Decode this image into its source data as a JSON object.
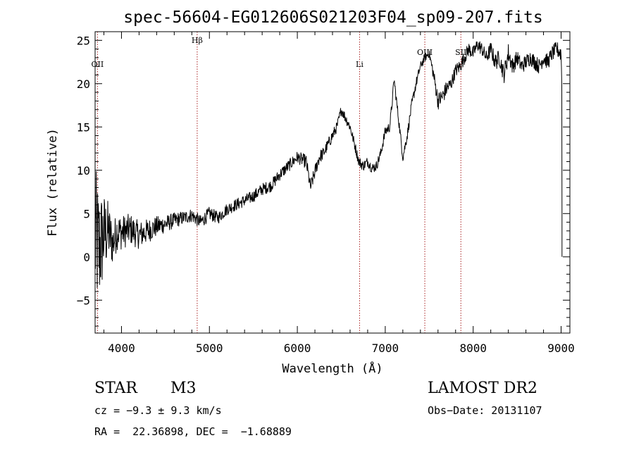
{
  "chart_data": {
    "type": "line",
    "title": "spec-56604-EG012606S021203F04_sp09-207.fits",
    "xlabel": "Wavelength (Å)",
    "ylabel": "Flux (relative)",
    "xlim": [
      3700,
      9100
    ],
    "ylim": [
      -8.8,
      26
    ],
    "x_ticks": [
      4000,
      5000,
      6000,
      7000,
      8000,
      9000
    ],
    "x_tick_labels": [
      "4000",
      "5000",
      "6000",
      "7000",
      "8000",
      "9000"
    ],
    "y_ticks": [
      -5,
      0,
      5,
      10,
      15,
      20,
      25
    ],
    "y_tick_labels": [
      "−5",
      "0",
      "5",
      "10",
      "15",
      "20",
      "25"
    ],
    "grid": false,
    "line_color": "#000000",
    "marker_color": "#aa2222",
    "lines": [
      {
        "label": "OII",
        "wavelength": 3727
      },
      {
        "label": "Hβ",
        "wavelength": 4861
      },
      {
        "label": "Li",
        "wavelength": 6708
      },
      {
        "label": "OIII",
        "wavelength": 7450
      },
      {
        "label": "SII",
        "wavelength": 7860
      }
    ],
    "series": [
      {
        "x": [
          3700,
          3750,
          3800,
          3850,
          3900,
          3950,
          4000,
          4100,
          4200,
          4300,
          4400,
          4500,
          4600,
          4700,
          4800,
          4900,
          5000,
          5100,
          5200,
          5300,
          5400,
          5500,
          5600,
          5700,
          5800,
          5900,
          6000,
          6100,
          6150,
          6200,
          6250,
          6300,
          6350,
          6400,
          6450,
          6500,
          6550,
          6600,
          6650,
          6700,
          6750,
          6800,
          6850,
          6900,
          6950,
          7000,
          7050,
          7080,
          7100,
          7150,
          7200,
          7250,
          7300,
          7350,
          7400,
          7450,
          7500,
          7550,
          7600,
          7650,
          7700,
          7750,
          7800,
          7850,
          7900,
          7950,
          8000,
          8050,
          8100,
          8150,
          8200,
          8250,
          8300,
          8350,
          8400,
          8450,
          8500,
          8550,
          8600,
          8650,
          8700,
          8750,
          8800,
          8850,
          8900,
          8950,
          9000,
          9010
        ],
        "y": [
          2,
          1,
          2.5,
          3,
          1.5,
          3,
          2.8,
          3.2,
          2.5,
          3,
          3.5,
          3.8,
          4.2,
          4.5,
          4.8,
          4,
          5,
          4.5,
          5.5,
          6,
          6.5,
          7,
          7.8,
          8.2,
          9.5,
          10.5,
          11.5,
          11,
          8,
          9.8,
          11.5,
          12,
          13,
          14,
          15,
          17,
          16,
          15,
          13,
          11,
          10.5,
          11,
          10.2,
          10.5,
          12,
          14.5,
          15,
          18,
          20.5,
          16,
          11.5,
          14,
          17.5,
          20,
          22,
          23,
          23.5,
          21,
          18,
          18.5,
          19.5,
          20,
          21.5,
          22,
          23,
          24,
          23.5,
          24.5,
          24,
          23,
          24,
          22.5,
          23,
          21,
          23.5,
          22,
          23,
          22,
          22.5,
          23,
          22.5,
          22,
          23,
          22.5,
          23.5,
          24,
          23.5,
          19
        ],
        "noise_amplitude": [
          8.5,
          7,
          5,
          3.5,
          2.5,
          2.2,
          2,
          1.8,
          1.6,
          1.4,
          1.2,
          1,
          0.9,
          0.8,
          0.8,
          0.8,
          0.8,
          0.7,
          0.7,
          0.7,
          0.7,
          0.7,
          0.7,
          0.7,
          0.7,
          0.7,
          0.7,
          0.8,
          0.8,
          0.8,
          0.8,
          0.7,
          0.7,
          0.7,
          0.6,
          0.6,
          0.6,
          0.6,
          0.6,
          0.6,
          0.6,
          0.6,
          0.6,
          0.6,
          0.6,
          0.6,
          0.6,
          0.6,
          0.6,
          0.6,
          0.6,
          0.6,
          0.6,
          0.6,
          0.5,
          0.5,
          0.5,
          0.8,
          1,
          1,
          0.9,
          0.8,
          0.8,
          0.8,
          0.8,
          0.8,
          0.8,
          0.8,
          0.8,
          0.8,
          0.9,
          1,
          1,
          1,
          1.2,
          1,
          0.9,
          0.9,
          0.9,
          0.9,
          0.9,
          0.9,
          0.9,
          0.9,
          0.9,
          0.9,
          1,
          1
        ]
      }
    ]
  },
  "info": {
    "object_class": "STAR",
    "subclass": "M3",
    "survey": "LAMOST DR2",
    "cz": "cz = −9.3 ± 9.3 km/s",
    "obs_date": "Obs−Date: 20131107",
    "coords": "RA =  22.36898, DEC =  −1.68889"
  }
}
